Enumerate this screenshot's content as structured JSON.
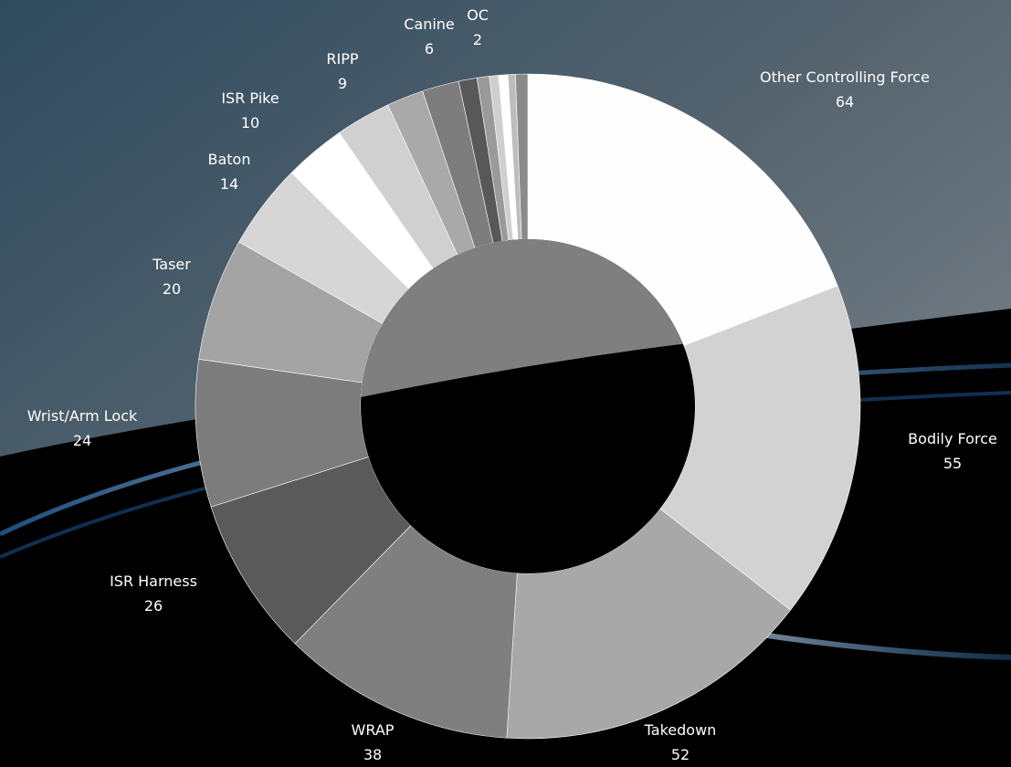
{
  "chart_data": {
    "type": "pie",
    "variant": "donut",
    "title": "",
    "slices": [
      {
        "label": "Other Controlling Force",
        "value": 64,
        "color": "#fefefe",
        "show_label": true
      },
      {
        "label": "Bodily Force",
        "value": 55,
        "color": "#d2d2d2",
        "show_label": true
      },
      {
        "label": "Takedown",
        "value": 52,
        "color": "#a8a8a8",
        "show_label": true
      },
      {
        "label": "WRAP",
        "value": 38,
        "color": "#7f7f7f",
        "show_label": true
      },
      {
        "label": "ISR Harness",
        "value": 26,
        "color": "#5a5a5a",
        "show_label": true
      },
      {
        "label": "Wrist/Arm Lock",
        "value": 24,
        "color": "#7c7c7c",
        "show_label": true
      },
      {
        "label": "Taser",
        "value": 20,
        "color": "#a4a4a4",
        "show_label": true
      },
      {
        "label": "Baton",
        "value": 14,
        "color": "#d6d6d6",
        "show_label": true
      },
      {
        "label": "ISR Pike",
        "value": 10,
        "color": "#ffffff",
        "show_label": true
      },
      {
        "label": "RIPP",
        "value": 9,
        "color": "#d0d0d0",
        "show_label": true
      },
      {
        "label": "Canine",
        "value": 6,
        "color": "#a9a9a9",
        "show_label": true
      },
      {
        "label": "",
        "value": 6,
        "color": "#7d7d7d",
        "show_label": false
      },
      {
        "label": "",
        "value": 3,
        "color": "#585858",
        "show_label": false
      },
      {
        "label": "",
        "value": 2,
        "color": "#9a9a9a",
        "show_label": false
      },
      {
        "label": "",
        "value": 1.5,
        "color": "#cfcfcf",
        "show_label": false
      },
      {
        "label": "",
        "value": 1.5,
        "color": "#ffffff",
        "show_label": false
      },
      {
        "label": "",
        "value": 1.2,
        "color": "#bdbdbd",
        "show_label": false
      },
      {
        "label": "OC",
        "value": 2,
        "color": "#8a8a8a",
        "show_label": true
      }
    ]
  }
}
